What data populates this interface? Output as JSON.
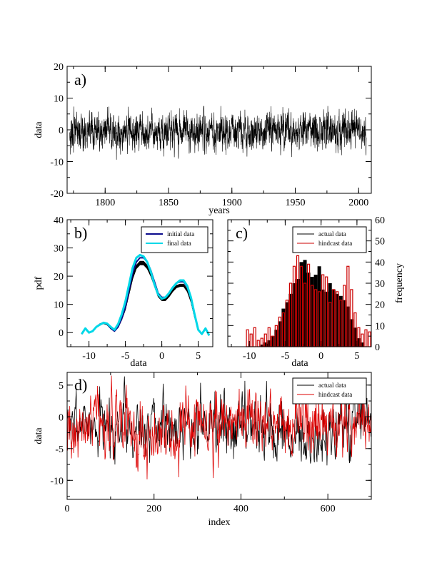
{
  "chart_data": [
    {
      "panel": "a)",
      "type": "line",
      "xlabel": "years",
      "ylabel": "data",
      "xlim": [
        1770,
        2010
      ],
      "ylim": [
        -20,
        20
      ],
      "xticks": [
        1800,
        1850,
        1900,
        1950,
        2000
      ],
      "yticks": [
        -20,
        -10,
        0,
        10,
        20
      ],
      "series": [
        {
          "color": "#000000",
          "description_values": {
            "x_range": [
              1772,
              2006
            ],
            "typical_range": [
              -5,
              5
            ],
            "max_approx": 8,
            "min_approx": -14
          }
        }
      ]
    },
    {
      "panel": "b)",
      "type": "line",
      "xlabel": "data",
      "ylabel": "pdf",
      "xlim": [
        -13,
        7
      ],
      "ylim": [
        -5,
        40
      ],
      "xticks": [
        -10,
        -5,
        0,
        5
      ],
      "yticks": [
        0,
        10,
        20,
        30,
        40
      ],
      "legend_position": "top-right",
      "series": [
        {
          "name": "initial data",
          "color": "#0a0a8c",
          "x": [
            -11,
            -10.5,
            -10,
            -9.5,
            -9,
            -8.5,
            -8,
            -7.5,
            -7,
            -6.5,
            -6,
            -5.5,
            -5,
            -4.5,
            -4,
            -3.5,
            -3,
            -2.5,
            -2,
            -1.5,
            -1,
            -0.5,
            0,
            0.5,
            1,
            1.5,
            2,
            2.5,
            3,
            3.5,
            4,
            4.5,
            5,
            5.5,
            6,
            6.5
          ],
          "y": [
            -0.5,
            1.5,
            0,
            0.5,
            2,
            3,
            3.5,
            3,
            1.5,
            0.5,
            2,
            5,
            9,
            15,
            21,
            25,
            26.5,
            26.5,
            25,
            22,
            18,
            14,
            12.5,
            12.5,
            14,
            16,
            17.5,
            18,
            18,
            16,
            12,
            6,
            1,
            -0.5,
            1.5,
            -1
          ]
        },
        {
          "name": "final data",
          "color": "#00d8e8",
          "x": [
            -11,
            -10.5,
            -10,
            -9.5,
            -9,
            -8.5,
            -8,
            -7.5,
            -7,
            -6.5,
            -6,
            -5.5,
            -5,
            -4.5,
            -4,
            -3.5,
            -3,
            -2.5,
            -2,
            -1.5,
            -1,
            -0.5,
            0,
            0.5,
            1,
            1.5,
            2,
            2.5,
            3,
            3.5,
            4,
            4.5,
            5,
            5.5,
            6,
            6.5
          ],
          "y": [
            -0.5,
            1.5,
            0,
            0.5,
            2,
            2.8,
            3.5,
            3.2,
            2,
            1,
            3,
            6.5,
            11,
            17,
            23,
            26.5,
            27.5,
            27,
            25,
            21.5,
            17,
            13.5,
            12,
            12.5,
            14,
            16,
            17.5,
            18.5,
            18.5,
            16.5,
            12.5,
            6.5,
            1,
            -0.5,
            1.5,
            -1
          ]
        }
      ]
    },
    {
      "panel": "c)",
      "type": "bar",
      "xlabel": "data",
      "ylabel": "frequency",
      "xlim": [
        -13,
        7
      ],
      "ylim": [
        0,
        60
      ],
      "xticks": [
        -10,
        -5,
        0,
        5
      ],
      "yticks": [
        0,
        10,
        20,
        30,
        40,
        50,
        60
      ],
      "bin_width": 0.5,
      "bin_centers": [
        -11.25,
        -10.75,
        -10.25,
        -9.75,
        -9.25,
        -8.75,
        -8.25,
        -7.75,
        -7.25,
        -6.75,
        -6.25,
        -5.75,
        -5.25,
        -4.75,
        -4.25,
        -3.75,
        -3.25,
        -2.75,
        -2.25,
        -1.75,
        -1.25,
        -0.75,
        -0.25,
        0.25,
        0.75,
        1.25,
        1.75,
        2.25,
        2.75,
        3.25,
        3.75,
        4.25,
        4.75,
        5.25,
        5.75,
        6.25,
        6.75
      ],
      "legend_position": "top-right",
      "series": [
        {
          "name": "actual data",
          "color": "#000000",
          "values": [
            0,
            0,
            0,
            0,
            0,
            0,
            1,
            2,
            3,
            5,
            8,
            12,
            18,
            21,
            25,
            30,
            32,
            40,
            41,
            35,
            33,
            34,
            38,
            27,
            26,
            30,
            27,
            25,
            24,
            22,
            19,
            13,
            9,
            4,
            2,
            0,
            0
          ]
        },
        {
          "name": "hindcast data",
          "color": "#cc0000",
          "values": [
            0,
            0,
            8,
            6,
            9,
            3,
            4,
            6,
            9,
            5,
            10,
            14,
            16,
            22,
            30,
            38,
            43,
            38,
            30,
            39,
            29,
            27,
            26,
            34,
            33,
            21,
            27,
            26,
            22,
            29,
            38,
            27,
            16,
            9,
            6,
            8,
            7
          ]
        }
      ]
    },
    {
      "panel": "d)",
      "type": "line",
      "xlabel": "index",
      "ylabel": "data",
      "xlim": [
        0,
        700
      ],
      "ylim": [
        -13,
        7
      ],
      "xticks": [
        0,
        200,
        400,
        600
      ],
      "yticks": [
        -10,
        -5,
        0,
        5
      ],
      "legend_position": "top-right",
      "series": [
        {
          "name": "actual data",
          "color": "#000000",
          "description_values": {
            "x_range": [
              0,
              700
            ],
            "typical_range": [
              -5,
              4
            ],
            "max_approx": 6,
            "min_approx": -10.5
          }
        },
        {
          "name": "hindcast data",
          "color": "#dd0000",
          "description_values": {
            "x_range": [
              0,
              700
            ],
            "typical_range": [
              -6,
              4
            ],
            "max_approx": 6.5,
            "min_approx": -11
          }
        }
      ]
    }
  ]
}
